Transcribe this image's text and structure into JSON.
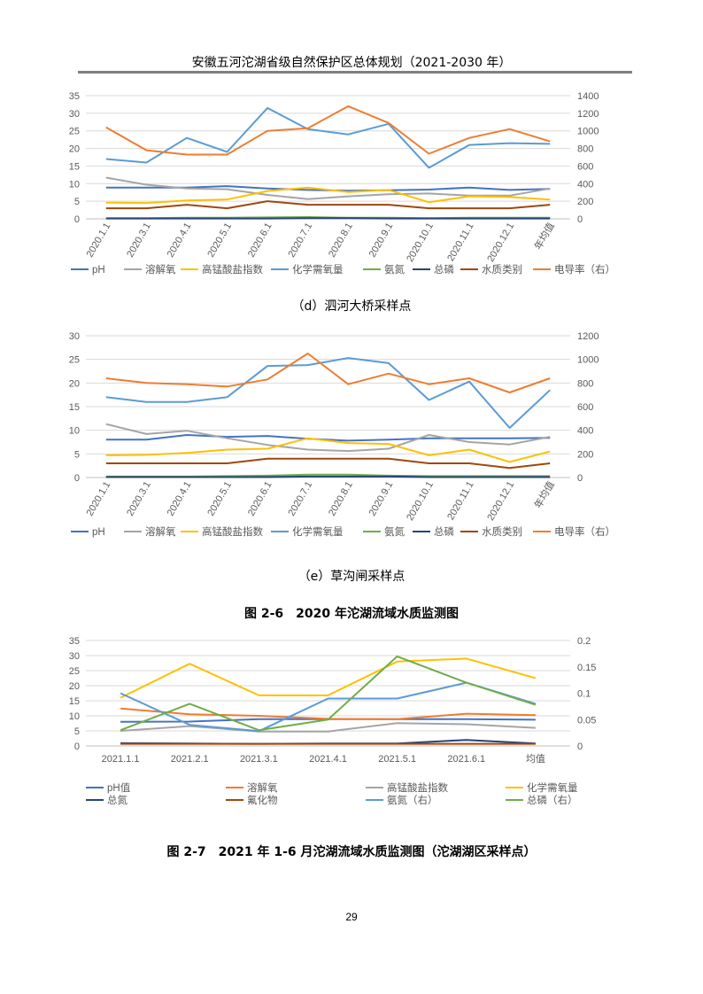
{
  "header": {
    "title": "安徽五河沱湖省级自然保护区总体规划（2021-2030 年）"
  },
  "captions": {
    "d": "（d）泗河大桥采样点",
    "e": "（e）草沟闸采样点",
    "fig26": "图 2-6　2020 年沱湖流域水质监测图",
    "fig27": "图 2-7　2021 年 1-6 月沱湖流域水质监测图（沱湖湖区采样点）"
  },
  "page_number": "29",
  "chart_data": [
    {
      "type": "line",
      "categories": [
        "2020.1.1",
        "2020.3.1",
        "2020.4.1",
        "2020.5.1",
        "2020.6.1",
        "2020.7.1",
        "2020.8.1",
        "2020.9.1",
        "2020.10.1",
        "2020.11.1",
        "2020.12.1",
        "年均值"
      ],
      "ylim": [
        0,
        35
      ],
      "yticks": [
        0,
        5,
        10,
        15,
        20,
        25,
        30,
        35
      ],
      "y2lim": [
        0,
        1400
      ],
      "y2ticks": [
        0,
        200,
        400,
        600,
        800,
        1000,
        1200,
        1400
      ],
      "legend_position": "bottom",
      "series": [
        {
          "name": "pH",
          "color": "#4472C4",
          "axis": "left",
          "values": [
            8.9,
            8.9,
            8.9,
            9.3,
            8.6,
            8.2,
            8.0,
            8.1,
            8.3,
            8.9,
            8.2,
            8.5
          ]
        },
        {
          "name": "溶解氧",
          "color": "#A5A5A5",
          "axis": "left",
          "values": [
            11.7,
            9.7,
            8.6,
            8.4,
            6.8,
            5.6,
            6.4,
            7.0,
            7.2,
            6.6,
            6.6,
            8.6
          ]
        },
        {
          "name": "高锰酸盐指数",
          "color": "#FFC000",
          "axis": "left",
          "values": [
            4.6,
            4.5,
            5.2,
            5.5,
            7.9,
            8.9,
            7.6,
            8.2,
            4.7,
            6.4,
            6.2,
            5.5
          ]
        },
        {
          "name": "化学需氧量",
          "color": "#5B9BD5",
          "axis": "left",
          "values": [
            17,
            16,
            23,
            19,
            31.5,
            25.5,
            24,
            27,
            14.5,
            21,
            21.5,
            21.3
          ]
        },
        {
          "name": "氨氮",
          "color": "#70AD47",
          "axis": "left",
          "values": [
            0.2,
            0.2,
            0.3,
            0.3,
            0.4,
            0.5,
            0.3,
            0.3,
            0.2,
            0.3,
            0.3,
            0.3
          ]
        },
        {
          "name": "总磷",
          "color": "#264478",
          "axis": "left",
          "values": [
            0.1,
            0.1,
            0.1,
            0.1,
            0.1,
            0.2,
            0.2,
            0.1,
            0.1,
            0.1,
            0.1,
            0.1
          ]
        },
        {
          "name": "水质类别",
          "color": "#9E480E",
          "axis": "left",
          "values": [
            3,
            3,
            4,
            3,
            5,
            4,
            4,
            4,
            3,
            3,
            3,
            4
          ]
        },
        {
          "name": "电导率（右）",
          "color": "#ED7D31",
          "axis": "right",
          "values": [
            1040,
            780,
            730,
            730,
            1000,
            1030,
            1280,
            1090,
            740,
            920,
            1020,
            880
          ]
        }
      ]
    },
    {
      "type": "line",
      "categories": [
        "2020.1.1",
        "2020.3.1",
        "2020.4.1",
        "2020.5.1",
        "2020.6.1",
        "2020.7.1",
        "2020.8.1",
        "2020.9.1",
        "2020.10.1",
        "2020.11.1",
        "2020.12.1",
        "年均值"
      ],
      "ylim": [
        0,
        30
      ],
      "yticks": [
        0,
        5,
        10,
        15,
        20,
        25,
        30
      ],
      "y2lim": [
        0,
        1200
      ],
      "y2ticks": [
        0,
        200,
        400,
        600,
        800,
        1000,
        1200
      ],
      "legend_position": "bottom",
      "series": [
        {
          "name": "pH",
          "color": "#4472C4",
          "axis": "left",
          "values": [
            8,
            8,
            9,
            8.6,
            8.8,
            8.2,
            7.8,
            8,
            8.3,
            8.3,
            8.3,
            8.4
          ]
        },
        {
          "name": "溶解氧",
          "color": "#A5A5A5",
          "axis": "left",
          "values": [
            11.3,
            9.2,
            9.9,
            8.3,
            6.9,
            5.9,
            5.6,
            6.1,
            9.0,
            7.5,
            7.0,
            8.6
          ]
        },
        {
          "name": "高锰酸盐指数",
          "color": "#FFC000",
          "axis": "left",
          "values": [
            4.7,
            4.8,
            5.2,
            5.9,
            6.1,
            8.3,
            7.3,
            7.1,
            4.7,
            5.9,
            3.3,
            5.5
          ]
        },
        {
          "name": "化学需氧量",
          "color": "#5B9BD5",
          "axis": "left",
          "values": [
            17,
            16,
            16,
            17,
            23.6,
            23.8,
            25.3,
            24.2,
            16.4,
            20.3,
            10.5,
            18.5
          ]
        },
        {
          "name": "氨氮",
          "color": "#70AD47",
          "axis": "left",
          "values": [
            0.2,
            0.2,
            0.2,
            0.3,
            0.4,
            0.6,
            0.6,
            0.4,
            0.3,
            0.3,
            0.3,
            0.3
          ]
        },
        {
          "name": "总磷",
          "color": "#264478",
          "axis": "left",
          "values": [
            0.1,
            0.1,
            0.1,
            0.1,
            0.1,
            0.2,
            0.2,
            0.2,
            0.1,
            0.1,
            0.1,
            0.1
          ]
        },
        {
          "name": "水质类别",
          "color": "#9E480E",
          "axis": "left",
          "values": [
            3,
            3,
            3,
            3,
            4,
            4,
            4,
            4,
            3,
            3,
            2,
            3
          ]
        },
        {
          "name": "电导率（右）",
          "color": "#ED7D31",
          "axis": "right",
          "values": [
            840,
            800,
            790,
            770,
            830,
            1050,
            790,
            880,
            790,
            840,
            720,
            840
          ]
        }
      ]
    },
    {
      "type": "line",
      "categories": [
        "2021.1.1",
        "2021.2.1",
        "2021.3.1",
        "2021.4.1",
        "2021.5.1",
        "2021.6.1",
        "均值"
      ],
      "ylim": [
        0,
        35
      ],
      "yticks": [
        0,
        5,
        10,
        15,
        20,
        25,
        30,
        35
      ],
      "y2lim": [
        0,
        0.2
      ],
      "y2ticks": [
        0,
        0.05,
        0.1,
        0.15,
        0.2
      ],
      "legend_position": "bottom",
      "series": [
        {
          "name": "pH值",
          "color": "#4472C4",
          "axis": "left",
          "values": [
            8.0,
            8.1,
            8.9,
            8.9,
            8.9,
            8.9,
            8.7
          ]
        },
        {
          "name": "溶解氧",
          "color": "#ED7D31",
          "axis": "left",
          "values": [
            12.4,
            10.5,
            10.0,
            9.0,
            8.9,
            10.7,
            10.2
          ]
        },
        {
          "name": "高锰酸盐指数",
          "color": "#A5A5A5",
          "axis": "left",
          "values": [
            5.0,
            6.6,
            4.8,
            4.8,
            7.6,
            7.2,
            6.0
          ]
        },
        {
          "name": "化学需氧量",
          "color": "#FFC000",
          "axis": "left",
          "values": [
            16,
            27.3,
            16.8,
            16.8,
            28,
            29,
            22.5
          ]
        },
        {
          "name": "总氮",
          "color": "#264478",
          "axis": "left",
          "values": [
            0.9,
            0.8,
            0.7,
            0.8,
            0.8,
            2.0,
            0.8
          ]
        },
        {
          "name": "氟化物",
          "color": "#9E480E",
          "axis": "left",
          "values": [
            0.7,
            0.7,
            0.7,
            0.7,
            0.7,
            0.7,
            0.7
          ]
        },
        {
          "name": "氨氮（右）",
          "color": "#5B9BD5",
          "axis": "right",
          "values": [
            0.1,
            0.04,
            0.028,
            0.09,
            0.09,
            0.12,
            0.08
          ]
        },
        {
          "name": "总磷（右）",
          "color": "#70AD47",
          "axis": "right",
          "values": [
            0.03,
            0.08,
            0.03,
            0.05,
            0.17,
            0.12,
            0.078
          ]
        }
      ]
    }
  ]
}
